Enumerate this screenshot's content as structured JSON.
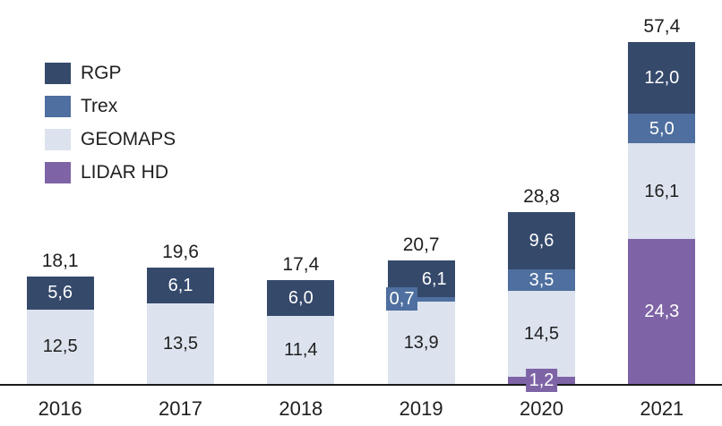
{
  "chart_data": {
    "type": "bar",
    "stacked": true,
    "title": "",
    "categories": [
      "2016",
      "2017",
      "2018",
      "2019",
      "2020",
      "2021"
    ],
    "series": [
      {
        "name": "RGP",
        "color": "#35496B",
        "label_color": "#FFFFFF",
        "values": [
          5.6,
          6.1,
          6.0,
          6.1,
          9.6,
          12.0
        ]
      },
      {
        "name": "Trex",
        "color": "#4E6F9F",
        "label_color": "#FFFFFF",
        "values": [
          0,
          0,
          0,
          0.7,
          3.5,
          5.0
        ]
      },
      {
        "name": "GEOMAPS",
        "color": "#DCE3EE",
        "label_color": "#1F1F1F",
        "values": [
          12.5,
          13.5,
          11.4,
          13.9,
          14.5,
          16.1
        ]
      },
      {
        "name": "LIDAR HD",
        "color": "#7E64A6",
        "label_color": "#FFFFFF",
        "values": [
          0,
          0,
          0,
          0,
          1.2,
          24.3
        ]
      }
    ],
    "totals": [
      18.1,
      19.6,
      17.4,
      20.7,
      28.8,
      57.4
    ],
    "number_format": "decimal-comma",
    "legend": {
      "position": "top-left",
      "entries": [
        "RGP",
        "Trex",
        "GEOMAPS",
        "LIDAR HD"
      ]
    },
    "axis": {
      "baseline": true,
      "baseline_color": "#1A1A1A",
      "text_color": "#1F1F1F"
    },
    "ylim": [
      0,
      60
    ],
    "grid": false
  }
}
